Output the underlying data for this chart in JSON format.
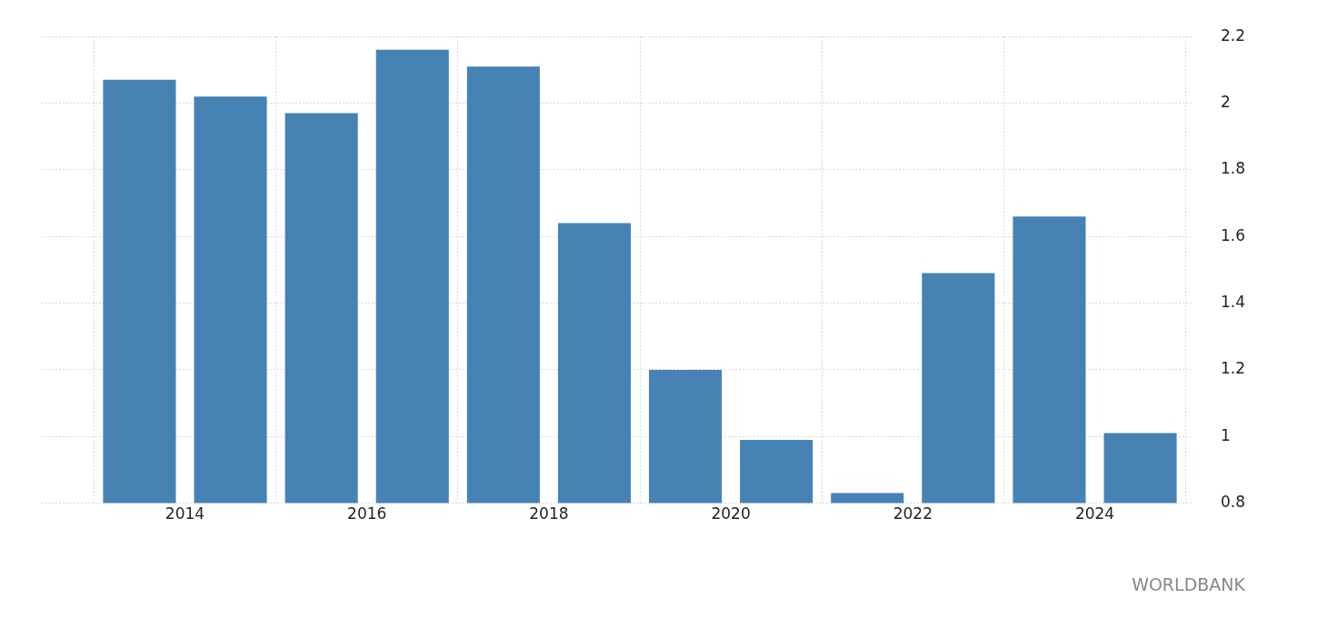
{
  "chart_data": {
    "type": "bar",
    "x": [
      "2013-07",
      "2014-07",
      "2015-07",
      "2016-07",
      "2017-07",
      "2018-07",
      "2019-07",
      "2020-07",
      "2021-07",
      "2022-07",
      "2023-07",
      "2024-07"
    ],
    "values": [
      2.07,
      2.02,
      1.97,
      2.16,
      2.11,
      1.64,
      1.2,
      0.99,
      0.83,
      1.49,
      1.66,
      1.01
    ],
    "color": "#4682b4",
    "xlim": [
      "2012-06",
      "2025-02"
    ],
    "xticks": [
      "2014",
      "2016",
      "2018",
      "2020",
      "2022",
      "2024"
    ],
    "ylim": [
      0.8,
      2.2
    ],
    "yticks": [
      0.8,
      1,
      1.2,
      1.4,
      1.6,
      1.8,
      2,
      2.2
    ],
    "grid": true,
    "annotations": [
      "WORLDBANK"
    ]
  }
}
